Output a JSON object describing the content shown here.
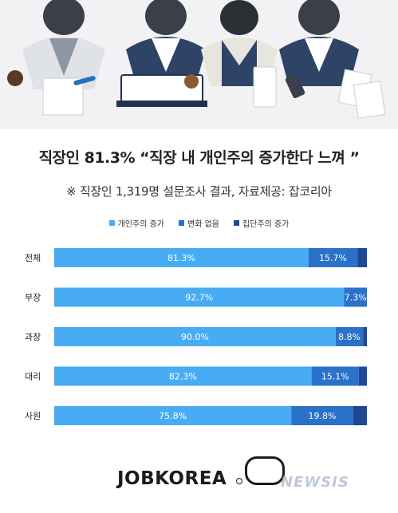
{
  "title": "직장인 81.3% “직장 내 개인주의 증가한다 느껴 ”",
  "subtitle": "※ 직장인 1,319명 설문조사 결과,  자료제공: 잡코리아",
  "logo": "JOBKOREA",
  "watermark": "NEWSIS",
  "colors": {
    "increase": "#47acf4",
    "no_change": "#2a71c9",
    "collective": "#1d4894",
    "hero_bg": "#f2f2f4"
  },
  "chart_data": {
    "type": "bar",
    "orientation": "horizontal",
    "stacked": true,
    "categories": [
      "전체",
      "부장",
      "과장",
      "대리",
      "사원"
    ],
    "series": [
      {
        "name": "개인주의 증가",
        "values": [
          81.3,
          92.7,
          90.0,
          82.3,
          75.8
        ],
        "labels": [
          "81.3%",
          "92.7%",
          "90.0%",
          "82.3%",
          "75.8%"
        ]
      },
      {
        "name": "변화 없음",
        "values": [
          15.7,
          7.3,
          8.8,
          15.1,
          19.8
        ],
        "labels": [
          "15.7%",
          "7.3%",
          "8.8%",
          "15.1%",
          "19.8%"
        ]
      },
      {
        "name": "집단주의 증가",
        "values": [
          3.0,
          0.0,
          1.2,
          2.6,
          4.4
        ],
        "labels": [
          "",
          "",
          "",
          "",
          ""
        ]
      }
    ],
    "xlim": [
      0,
      100
    ],
    "legend": "top-center",
    "grid": false
  }
}
